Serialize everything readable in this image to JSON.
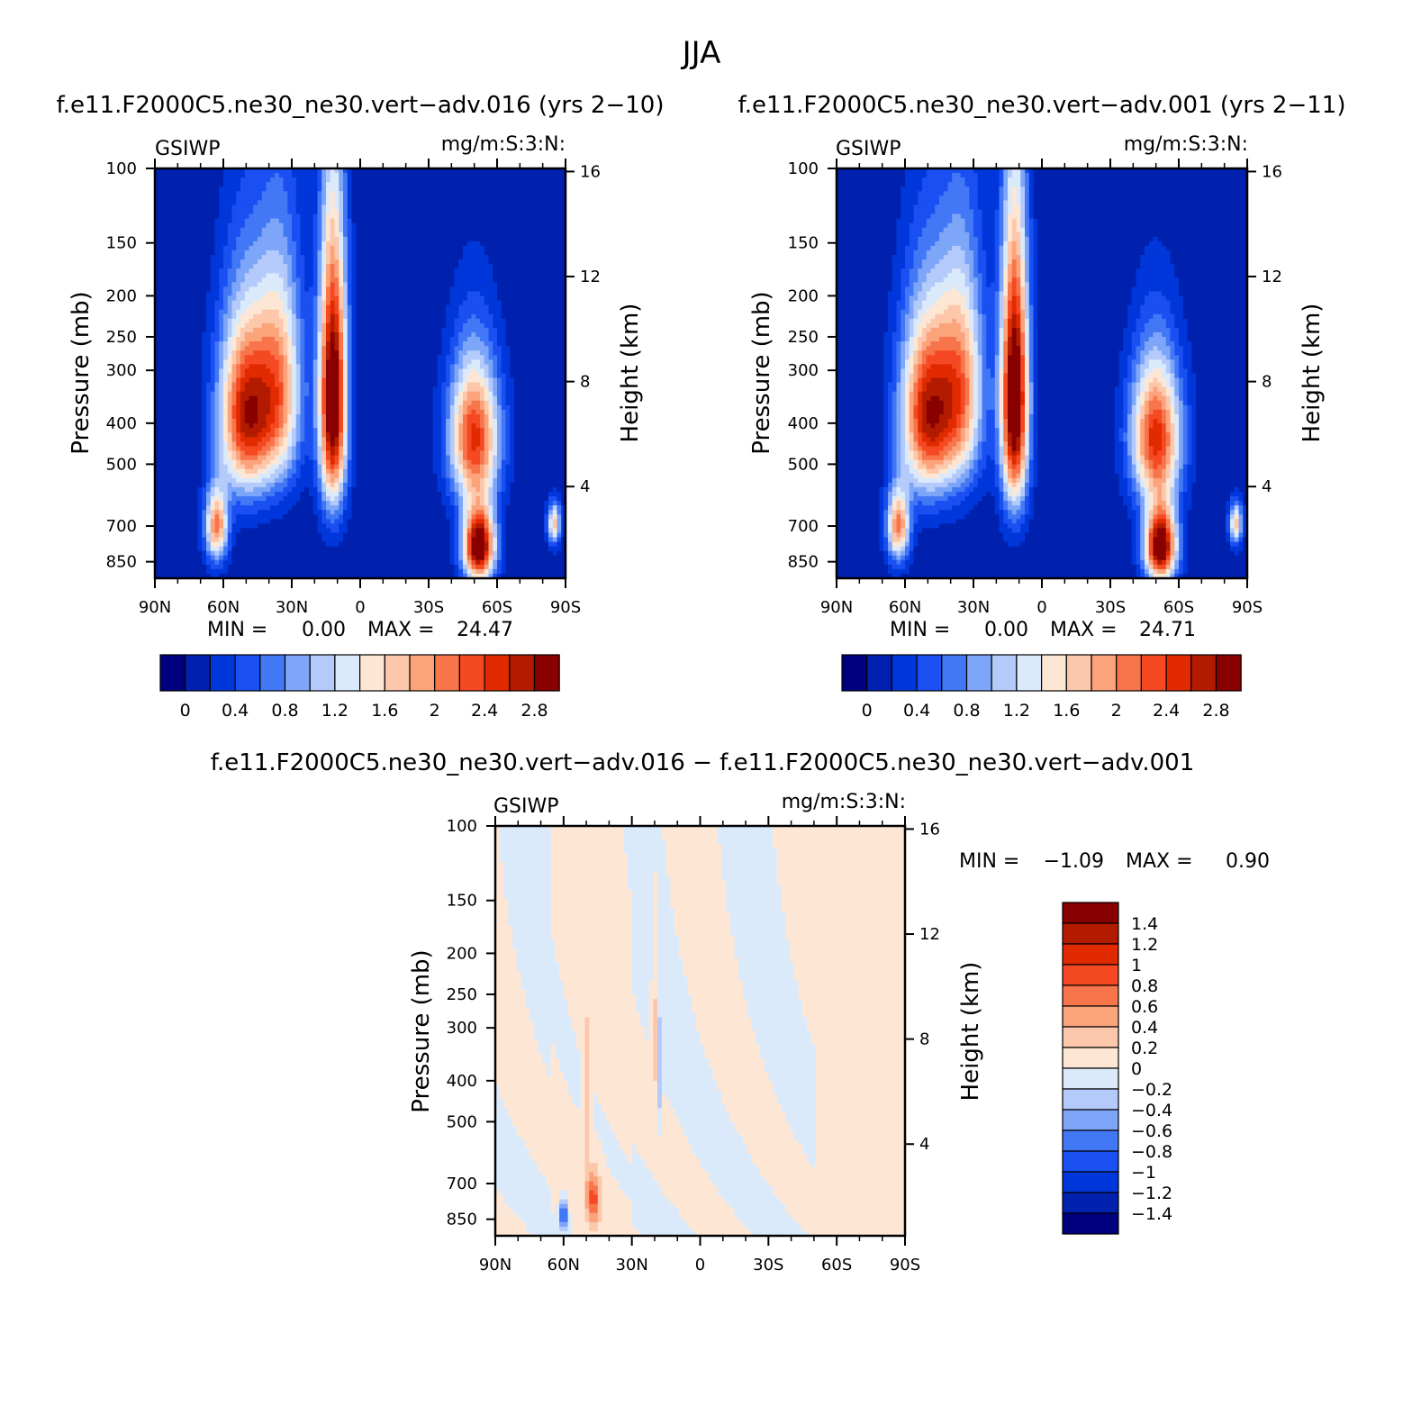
{
  "figure": {
    "title": "JJA"
  },
  "colors": {
    "abs_levels": [
      "#00007f",
      "#0021ae",
      "#0037db",
      "#1a4ff2",
      "#4278f5",
      "#7ea6f8",
      "#b4cafa",
      "#dbeafb",
      "#fde7d4",
      "#fcc7ab",
      "#fba37b",
      "#f8744a",
      "#f44923",
      "#e12a00",
      "#b21b00",
      "#880000"
    ],
    "diff_levels": [
      "#00007f",
      "#0021ae",
      "#0037db",
      "#1a4ff2",
      "#4278f5",
      "#7ea6f8",
      "#b4cafa",
      "#dbeafb",
      "#fde7d4",
      "#fcc7ab",
      "#fba37b",
      "#f8744a",
      "#f44923",
      "#e12a00",
      "#b21b00",
      "#880000"
    ]
  },
  "chart_data": [
    {
      "type": "heatmap",
      "title": "f.e11.F2000C5.ne30_ne30.vert−adv.016 (yrs 2−10)",
      "left_label": "GSIWP",
      "right_label": "mg/m:S:3:N:",
      "ylabel": "Pressure (mb)",
      "y2label": "Height (km)",
      "x_ticks": [
        "90N",
        "60N",
        "30N",
        "0",
        "30S",
        "60S",
        "90S"
      ],
      "y_ticks": [
        "100",
        "150",
        "200",
        "250",
        "300",
        "400",
        "500",
        "700",
        "850"
      ],
      "y_tick_values": [
        100,
        150,
        200,
        250,
        300,
        400,
        500,
        700,
        850
      ],
      "y2_ticks": [
        "16",
        "12",
        "8",
        "4"
      ],
      "y2_tick_values": [
        16,
        12,
        8,
        4
      ],
      "min_label": "MIN =",
      "min_value": "0.00",
      "max_label": "MAX =",
      "max_value": "24.47",
      "colorbar_labels": [
        "0",
        "0.4",
        "0.8",
        "1.2",
        "1.6",
        "2",
        "2.4",
        "2.8"
      ],
      "features": [
        {
          "lat": 50,
          "p": 380,
          "sx": 12,
          "sp": 190,
          "v": 2.6
        },
        {
          "lat": 63,
          "p": 700,
          "sx": 5,
          "sp": 140,
          "v": 2.0
        },
        {
          "lat": 12,
          "p": 350,
          "sx": 6,
          "sp": 250,
          "v": 3.3
        },
        {
          "lat": 35,
          "p": 330,
          "sx": 10,
          "sp": 200,
          "v": 1.7
        },
        {
          "lat": -50,
          "p": 430,
          "sx": 11,
          "sp": 170,
          "v": 2.4
        },
        {
          "lat": -52,
          "p": 780,
          "sx": 7,
          "sp": 160,
          "v": 3.2
        },
        {
          "lat": -85,
          "p": 690,
          "sx": 3,
          "sp": 80,
          "v": 1.6
        }
      ]
    },
    {
      "type": "heatmap",
      "title": "f.e11.F2000C5.ne30_ne30.vert−adv.001 (yrs 2−11)",
      "left_label": "GSIWP",
      "right_label": "mg/m:S:3:N:",
      "ylabel": "Pressure (mb)",
      "y2label": "Height (km)",
      "x_ticks": [
        "90N",
        "60N",
        "30N",
        "0",
        "30S",
        "60S",
        "90S"
      ],
      "y_ticks": [
        "100",
        "150",
        "200",
        "250",
        "300",
        "400",
        "500",
        "700",
        "850"
      ],
      "y_tick_values": [
        100,
        150,
        200,
        250,
        300,
        400,
        500,
        700,
        850
      ],
      "y2_ticks": [
        "16",
        "12",
        "8",
        "4"
      ],
      "y2_tick_values": [
        16,
        12,
        8,
        4
      ],
      "min_label": "MIN =",
      "min_value": "0.00",
      "max_label": "MAX =",
      "max_value": "24.71",
      "colorbar_labels": [
        "0",
        "0.4",
        "0.8",
        "1.2",
        "1.6",
        "2",
        "2.4",
        "2.8"
      ],
      "features": [
        {
          "lat": 50,
          "p": 380,
          "sx": 12,
          "sp": 190,
          "v": 2.6
        },
        {
          "lat": 63,
          "p": 700,
          "sx": 5,
          "sp": 140,
          "v": 2.0
        },
        {
          "lat": 12,
          "p": 350,
          "sx": 6,
          "sp": 250,
          "v": 3.35
        },
        {
          "lat": 35,
          "p": 330,
          "sx": 10,
          "sp": 200,
          "v": 1.75
        },
        {
          "lat": -50,
          "p": 430,
          "sx": 11,
          "sp": 170,
          "v": 2.45
        },
        {
          "lat": -52,
          "p": 780,
          "sx": 7,
          "sp": 160,
          "v": 3.2
        },
        {
          "lat": -85,
          "p": 690,
          "sx": 3,
          "sp": 80,
          "v": 1.6
        }
      ]
    },
    {
      "type": "heatmap",
      "title": "f.e11.F2000C5.ne30_ne30.vert−adv.016 − f.e11.F2000C5.ne30_ne30.vert−adv.001",
      "left_label": "GSIWP",
      "right_label": "mg/m:S:3:N:",
      "ylabel": "Pressure (mb)",
      "y2label": "Height (km)",
      "x_ticks": [
        "90N",
        "60N",
        "30N",
        "0",
        "30S",
        "60S",
        "90S"
      ],
      "y_ticks": [
        "100",
        "150",
        "200",
        "250",
        "300",
        "400",
        "500",
        "700",
        "850"
      ],
      "y_tick_values": [
        100,
        150,
        200,
        250,
        300,
        400,
        500,
        700,
        850
      ],
      "y2_ticks": [
        "16",
        "12",
        "8",
        "4"
      ],
      "y2_tick_values": [
        16,
        12,
        8,
        4
      ],
      "min_label": "MIN =",
      "min_value": "−1.09",
      "max_label": "MAX =",
      "max_value": "0.90",
      "colorbar_labels": [
        "1.4",
        "1.2",
        "1",
        "0.8",
        "0.6",
        "0.4",
        "0.2",
        "0",
        "−0.2",
        "−0.4",
        "−0.6",
        "−0.8",
        "−1",
        "−1.2",
        "−1.4"
      ],
      "features": [
        {
          "lat": 47,
          "p": 760,
          "sx": 3,
          "sp": 110,
          "v": 0.85
        },
        {
          "lat": 60,
          "p": 830,
          "sx": 1.5,
          "sp": 60,
          "v": -1.05
        },
        {
          "lat": 50,
          "p": 450,
          "sx": 1.5,
          "sp": 200,
          "v": 0.35
        },
        {
          "lat": 20,
          "p": 320,
          "sx": 1.2,
          "sp": 120,
          "v": 0.35
        },
        {
          "lat": 18,
          "p": 380,
          "sx": 1.0,
          "sp": 110,
          "v": -0.4
        }
      ]
    }
  ]
}
